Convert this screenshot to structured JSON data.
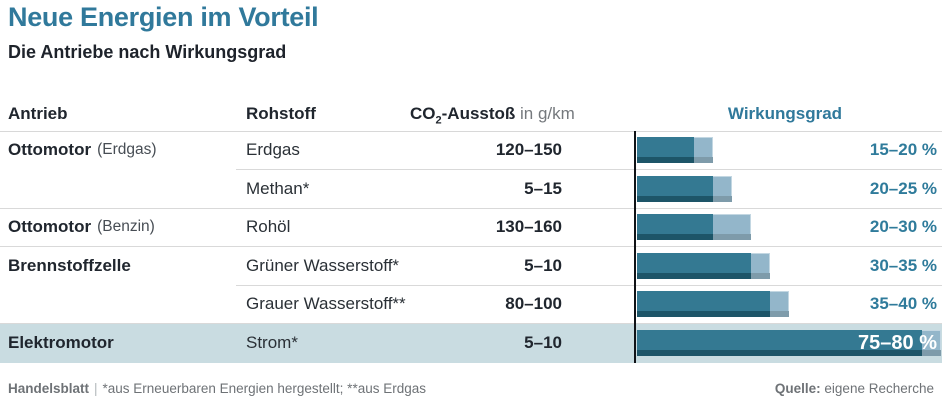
{
  "title": "Neue Energien im Vorteil",
  "subtitle": "Die Antriebe nach Wirkungsgrad",
  "columns": {
    "antrieb": "Antrieb",
    "rohstoff": "Rohstoff",
    "co2_prefix": "CO",
    "co2_sub": "2",
    "co2_rest": "-Ausstoß",
    "co2_unit": " in g/km",
    "wirkungsgrad": "Wirkungsgrad"
  },
  "chart_data": {
    "type": "bar",
    "title": "Neue Energien im Vorteil",
    "subtitle": "Die Antriebe nach Wirkungsgrad",
    "value_label": "Wirkungsgrad",
    "unit": "%",
    "xlim": [
      0,
      80
    ],
    "rows": [
      {
        "antrieb": "Ottomotor",
        "antrieb_note": "(Erdgas)",
        "rohstoff": "Erdgas",
        "co2": "120–150",
        "min": 15,
        "max": 20,
        "label": "15–20 %",
        "group_start": true,
        "highlight": false
      },
      {
        "antrieb": "",
        "antrieb_note": "",
        "rohstoff": "Methan*",
        "co2": "5–15",
        "min": 20,
        "max": 25,
        "label": "20–25 %",
        "group_start": false,
        "highlight": false
      },
      {
        "antrieb": "Ottomotor",
        "antrieb_note": "(Benzin)",
        "rohstoff": "Rohöl",
        "co2": "130–160",
        "min": 20,
        "max": 30,
        "label": "20–30 %",
        "group_start": true,
        "highlight": false
      },
      {
        "antrieb": "Brennstoffzelle",
        "antrieb_note": "",
        "rohstoff": "Grüner Wasserstoff*",
        "co2": "5–10",
        "min": 30,
        "max": 35,
        "label": "30–35 %",
        "group_start": true,
        "highlight": false
      },
      {
        "antrieb": "",
        "antrieb_note": "",
        "rohstoff": "Grauer Wasserstoff**",
        "co2": "80–100",
        "min": 35,
        "max": 40,
        "label": "35–40 %",
        "group_start": false,
        "highlight": false
      },
      {
        "antrieb": "Elektromotor",
        "antrieb_note": "",
        "rohstoff": "Strom*",
        "co2": "5–10",
        "min": 75,
        "max": 80,
        "label": "75–80 %",
        "group_start": true,
        "highlight": true
      }
    ]
  },
  "colors": {
    "accent_teal": "#30799b",
    "bar_dark": "#347992",
    "bar_dark_shade": "#1d5568",
    "bar_light": "#93b6ca",
    "bar_light_shade": "#7e9baa",
    "highlight_row_bg": "#c9dce1",
    "text_dark": "#20262e",
    "text_gray": "#6e7276",
    "divider": "#d9d9d9"
  },
  "footer": {
    "brand": "Handelsblatt",
    "separator": "|",
    "note": "*aus Erneuerbaren Energien hergestellt; **aus Erdgas",
    "source_label": "Quelle:",
    "source": "eigene Recherche"
  }
}
